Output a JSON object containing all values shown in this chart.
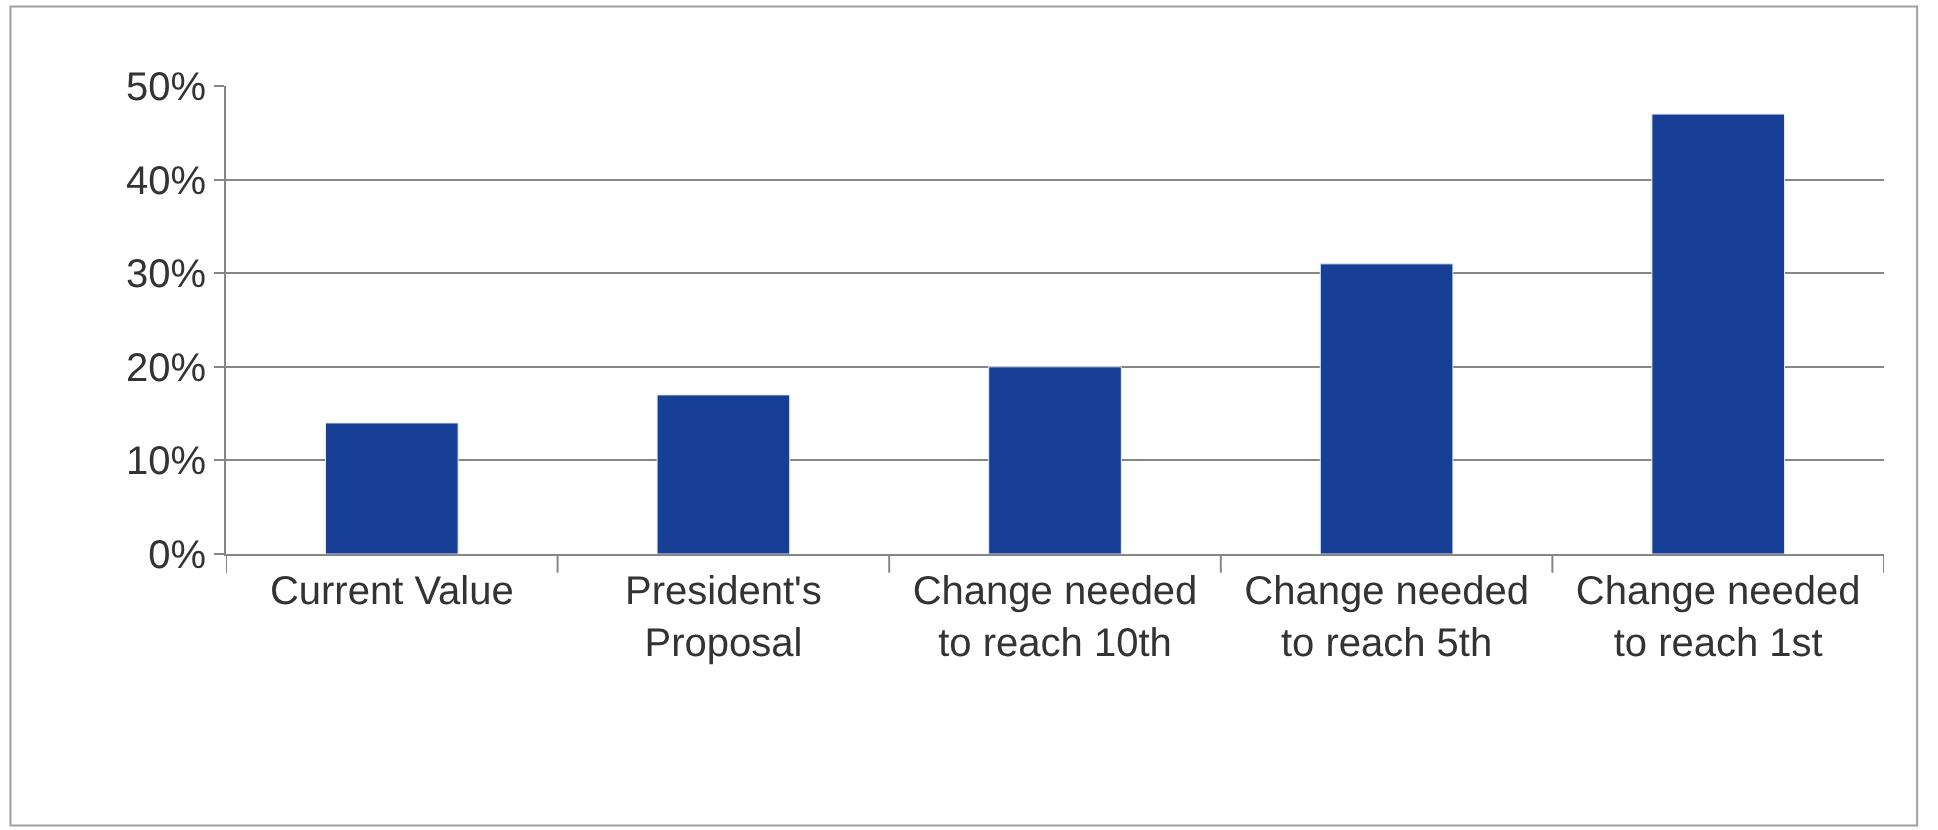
{
  "chart_data": {
    "type": "bar",
    "categories": [
      "Current Value",
      "President's Proposal",
      "Change needed to reach 10th",
      "Change needed to reach 5th",
      "Change needed to reach 1st"
    ],
    "values": [
      14,
      17,
      20,
      31,
      47
    ],
    "color": "#173f95",
    "ylim": [
      0,
      50
    ],
    "yticks": [
      {
        "value": 0,
        "label": "0%"
      },
      {
        "value": 10,
        "label": "10%"
      },
      {
        "value": 20,
        "label": "20%"
      },
      {
        "value": 30,
        "label": "30%"
      },
      {
        "value": 40,
        "label": "40%"
      },
      {
        "value": 50,
        "label": "50%"
      }
    ],
    "grid": "y"
  }
}
